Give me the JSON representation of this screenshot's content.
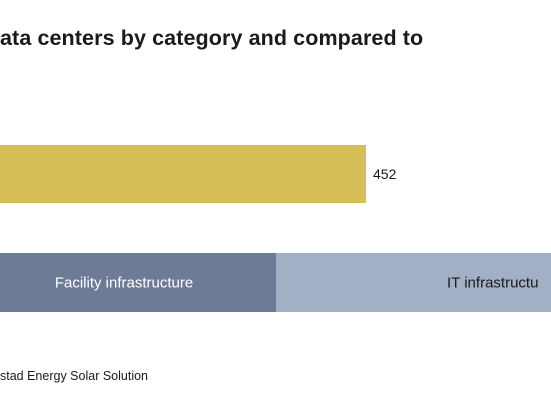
{
  "chart_data": {
    "type": "bar",
    "title": "ata centers by category and compared to",
    "source": "stad Energy Solar Solution",
    "bars": [
      {
        "value_label": "452",
        "value": 452,
        "color": "#d4be55"
      }
    ],
    "stacked_bar": {
      "segments": [
        {
          "label": "Facility infrastructure",
          "color": "#6e7b96",
          "text_color": "#ffffff"
        },
        {
          "label": "IT infrastructu",
          "color": "#a3afc4",
          "text_color": "#1a1a1a"
        }
      ]
    }
  }
}
